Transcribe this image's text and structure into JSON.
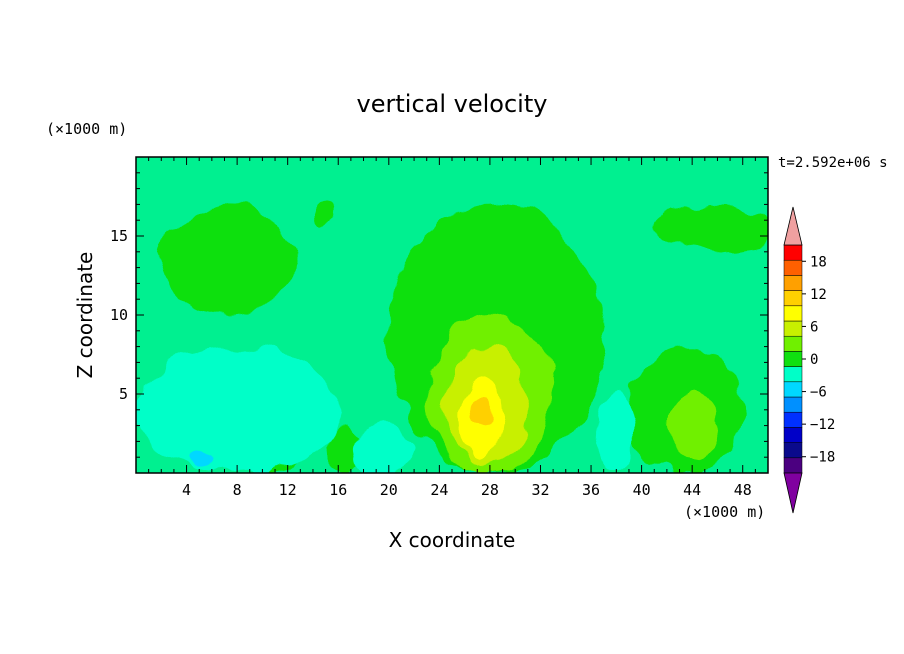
{
  "chart_data": {
    "type": "heatmap",
    "title": "vertical velocity",
    "time_label": "t=2.592e+06 s",
    "xlabel": "X coordinate",
    "ylabel": "Z coordinate",
    "x_unit": "(×1000 m)",
    "y_unit": "(×1000 m)",
    "xlim": [
      0,
      50
    ],
    "ylim": [
      0,
      20
    ],
    "x_ticks": [
      4,
      8,
      12,
      16,
      20,
      24,
      28,
      32,
      36,
      40,
      44,
      48
    ],
    "y_ticks": [
      5,
      10,
      15
    ],
    "colorbar": {
      "tick_labels": [
        "18",
        "12",
        "6",
        "0",
        "−6",
        "−12",
        "−18"
      ],
      "tick_values": [
        18,
        12,
        6,
        0,
        -6,
        -12,
        -18
      ],
      "levels": [
        -21,
        -18,
        -15,
        -12,
        -9,
        -6,
        -3,
        0,
        3,
        6,
        9,
        12,
        15,
        18,
        21
      ],
      "colors": [
        "#4b0080",
        "#0a0a8c",
        "#0000c8",
        "#0030ff",
        "#0090ff",
        "#00d8ff",
        "#00ffc8",
        "#10e010",
        "#70f000",
        "#c8f000",
        "#ffff00",
        "#ffd000",
        "#ffa000",
        "#ff6000",
        "#ff0000"
      ],
      "over_color": "#f0a0a0",
      "under_color": "#8000a0"
    },
    "background_color": "#00f090",
    "cells": [
      {
        "name": "upper-left-updraft",
        "x": [
          2,
          12.5
        ],
        "y": [
          10,
          17
        ],
        "value": 1.5
      },
      {
        "name": "upper-mid-updraft",
        "x": [
          14,
          16
        ],
        "y": [
          15.5,
          17
        ],
        "value": 1.5
      },
      {
        "name": "central-updraft",
        "x": [
          20,
          37
        ],
        "y": [
          0,
          17
        ],
        "value": 1.5
      },
      {
        "name": "central-core-1",
        "x": [
          23,
          33
        ],
        "y": [
          0,
          10
        ],
        "value": 4.5
      },
      {
        "name": "central-core-2",
        "x": [
          24.5,
          31
        ],
        "y": [
          0.5,
          8
        ],
        "value": 7.5
      },
      {
        "name": "central-core-3",
        "x": [
          25.5,
          29
        ],
        "y": [
          1,
          6
        ],
        "value": 10.5
      },
      {
        "name": "central-core-4",
        "x": [
          26.5,
          28
        ],
        "y": [
          3,
          5
        ],
        "value": 13.5
      },
      {
        "name": "upper-right-updraft",
        "x": [
          41,
          51
        ],
        "y": [
          14,
          17
        ],
        "value": 1.5
      },
      {
        "name": "right-updraft",
        "x": [
          39,
          48
        ],
        "y": [
          0,
          8
        ],
        "value": 1.5
      },
      {
        "name": "right-core",
        "x": [
          42,
          46
        ],
        "y": [
          1,
          5
        ],
        "value": 4.5
      },
      {
        "name": "left-lower-updraft",
        "x": [
          8.5,
          13
        ],
        "y": [
          0,
          2.5
        ],
        "value": 1.5
      },
      {
        "name": "left-lower-updraft-2",
        "x": [
          15,
          18
        ],
        "y": [
          0,
          3
        ],
        "value": 1.5
      },
      {
        "name": "left-downdraft",
        "x": [
          0,
          16
        ],
        "y": [
          0,
          8
        ],
        "value": -1.5
      },
      {
        "name": "left-downdraft-core",
        "x": [
          4.5,
          6
        ],
        "y": [
          0.5,
          1.5
        ],
        "value": -4.5
      },
      {
        "name": "mid-downdraft",
        "x": [
          36.5,
          39.5
        ],
        "y": [
          0,
          5
        ],
        "value": -1.5
      },
      {
        "name": "mid-downdraft-2",
        "x": [
          17,
          22
        ],
        "y": [
          0,
          3
        ],
        "value": -1.5
      }
    ]
  }
}
